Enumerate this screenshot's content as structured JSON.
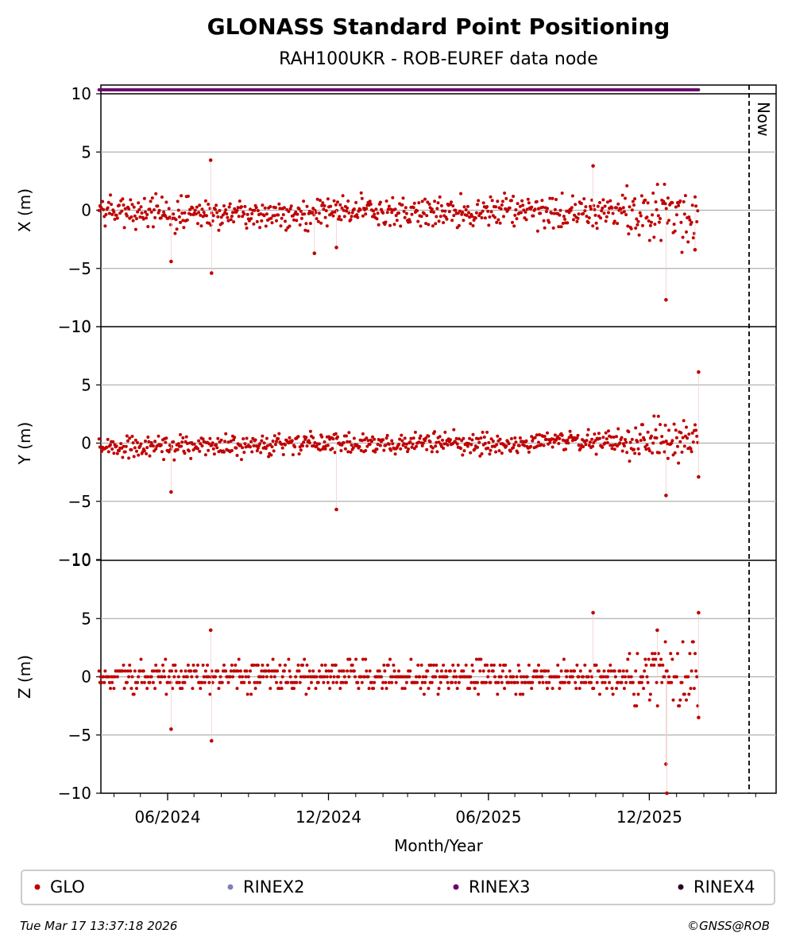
{
  "chart_data": {
    "type": "scatter",
    "title": "GLONASS Standard Point Positioning",
    "subtitle": "RAH100UKR - ROB-EUREF data node",
    "xlabel": "Month/Year",
    "x_ticks": [
      "06/2024",
      "12/2024",
      "06/2025",
      "12/2025"
    ],
    "now_label": "Now",
    "panels": [
      {
        "ylabel": "X (m)",
        "ylim": [
          -10,
          10
        ],
        "yticks": [
          "−10",
          "−5",
          "0",
          "5",
          "10"
        ]
      },
      {
        "ylabel": "Y (m)",
        "ylim": [
          -10,
          10
        ],
        "yticks": [
          "−10",
          "−5",
          "0",
          "5",
          "10"
        ]
      },
      {
        "ylabel": "Z (m)",
        "ylim": [
          -10,
          10
        ],
        "yticks": [
          "−10",
          "−5",
          "0",
          "5",
          "10"
        ]
      }
    ],
    "legend": [
      {
        "label": "GLO",
        "color": "#c00000"
      },
      {
        "label": "RINEX2",
        "color": "#7f7fbf"
      },
      {
        "label": "RINEX3",
        "color": "#6a006a"
      },
      {
        "label": "RINEX4",
        "color": "#2a0020"
      }
    ],
    "series": [
      {
        "name": "GLO",
        "color": "#c00000",
        "x_start": "2024-03-15",
        "x_end": "2026-01-26",
        "outliers_x": [
          {
            "date": "2024-06-05",
            "value": -4.4
          },
          {
            "date": "2024-07-20",
            "value": 4.3
          },
          {
            "date": "2024-07-21",
            "value": -5.4
          },
          {
            "date": "2024-11-15",
            "value": -3.7
          },
          {
            "date": "2024-12-10",
            "value": -3.2
          },
          {
            "date": "2025-09-28",
            "value": 3.8
          },
          {
            "date": "2025-12-20",
            "value": -7.7
          },
          {
            "date": "2026-01-22",
            "value": -3.4
          }
        ],
        "outliers_y": [
          {
            "date": "2024-06-05",
            "value": -4.2
          },
          {
            "date": "2024-12-10",
            "value": -5.7
          },
          {
            "date": "2025-12-20",
            "value": -4.5
          },
          {
            "date": "2026-01-26",
            "value": 6.1
          },
          {
            "date": "2026-01-26",
            "value": -2.9
          }
        ],
        "outliers_z": [
          {
            "date": "2024-06-05",
            "value": -4.5
          },
          {
            "date": "2024-07-20",
            "value": 4.0
          },
          {
            "date": "2024-07-21",
            "value": -5.5
          },
          {
            "date": "2025-09-28",
            "value": 5.5
          },
          {
            "date": "2025-12-10",
            "value": 4.0
          },
          {
            "date": "2025-12-20",
            "value": -7.5
          },
          {
            "date": "2025-12-21",
            "value": -10.0
          },
          {
            "date": "2026-01-26",
            "value": 5.5
          },
          {
            "date": "2026-01-26",
            "value": -3.5
          }
        ]
      },
      {
        "name": "RINEX3",
        "color": "#6a006a",
        "x_start": "2024-03-15",
        "x_end": "2026-01-26"
      }
    ]
  },
  "footer": {
    "timestamp": "Tue Mar 17 13:37:18 2026",
    "credit": "©GNSS@ROB"
  }
}
